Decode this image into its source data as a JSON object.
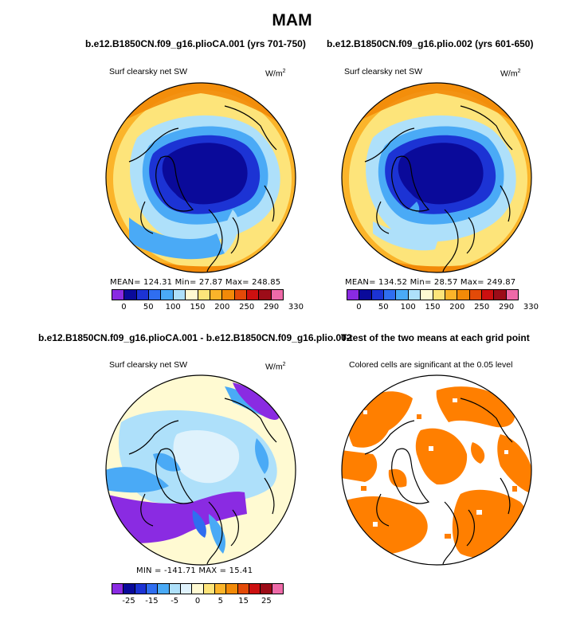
{
  "title": "MAM",
  "panels": {
    "p1": {
      "title": "b.e12.B1850CN.f09_g16.plioCA.001 (yrs 701-750)",
      "subtitle": "Surf clearsky net SW",
      "units": "W/m",
      "units_sup": "2",
      "stats": "MEAN=  124.31   Min=    27.87   Max=  248.85"
    },
    "p2": {
      "title": "b.e12.B1850CN.f09_g16.plio.002 (yrs 601-650)",
      "subtitle": "Surf clearsky net SW",
      "units": "W/m",
      "units_sup": "2",
      "stats": "MEAN=  134.52   Min=    28.57   Max=  249.87"
    },
    "p3": {
      "title": "b.e12.B1850CN.f09_g16.plioCA.001 - b.e12.B1850CN.f09_g16.plio.002",
      "subtitle": "Surf clearsky net SW",
      "units": "W/m",
      "units_sup": "2",
      "stats": "MIN =  -141.71  MAX =   15.41"
    },
    "p4": {
      "title": "T-test of the two means at each grid point",
      "subtitle": "Colored cells are significant at the 0.05 level"
    }
  },
  "colors": {
    "abs_scale": [
      "#8a2be2",
      "#0a0a9a",
      "#1c33d4",
      "#2f6ef0",
      "#4aaaf6",
      "#aee0fa",
      "#fffad2",
      "#fde47a",
      "#fbb42a",
      "#f28a08",
      "#e34a08",
      "#cc1010",
      "#9c0c18",
      "#ee6aa8"
    ],
    "diff_scale": [
      "#8a2be2",
      "#0a0a9a",
      "#1c33d4",
      "#2f6ef0",
      "#4aaaf6",
      "#aee0fa",
      "#dff2fc",
      "#fffad2",
      "#fde47a",
      "#fbb42a",
      "#f28a08",
      "#e34a08",
      "#cc1010",
      "#9c0c18",
      "#ee6aa8"
    ],
    "signif": "#ff7f00"
  },
  "chart_data": [
    {
      "type": "heatmap",
      "title": "b.e12.B1850CN.f09_g16.plioCA.001 (yrs 701-750)",
      "variable": "Surf clearsky net SW",
      "units": "W/m2",
      "colorbar_ticks": [
        "0",
        "50",
        "100",
        "150",
        "200",
        "250",
        "290",
        "330"
      ],
      "mean": 124.31,
      "min": 27.87,
      "max": 248.85
    },
    {
      "type": "heatmap",
      "title": "b.e12.B1850CN.f09_g16.plio.002 (yrs 601-650)",
      "variable": "Surf clearsky net SW",
      "units": "W/m2",
      "colorbar_ticks": [
        "0",
        "50",
        "100",
        "150",
        "200",
        "250",
        "290",
        "330"
      ],
      "mean": 134.52,
      "min": 28.57,
      "max": 249.87
    },
    {
      "type": "heatmap",
      "title": "b.e12.B1850CN.f09_g16.plioCA.001 - b.e12.B1850CN.f09_g16.plio.002",
      "variable": "Surf clearsky net SW",
      "units": "W/m2",
      "colorbar_ticks": [
        "-25",
        "-15",
        "-5",
        "0",
        "5",
        "15",
        "25"
      ],
      "min": -141.71,
      "max": 15.41
    },
    {
      "type": "heatmap",
      "title": "T-test of the two means at each grid point",
      "annotation": "Colored cells are significant at the 0.05 level",
      "significance_level": 0.05
    }
  ]
}
